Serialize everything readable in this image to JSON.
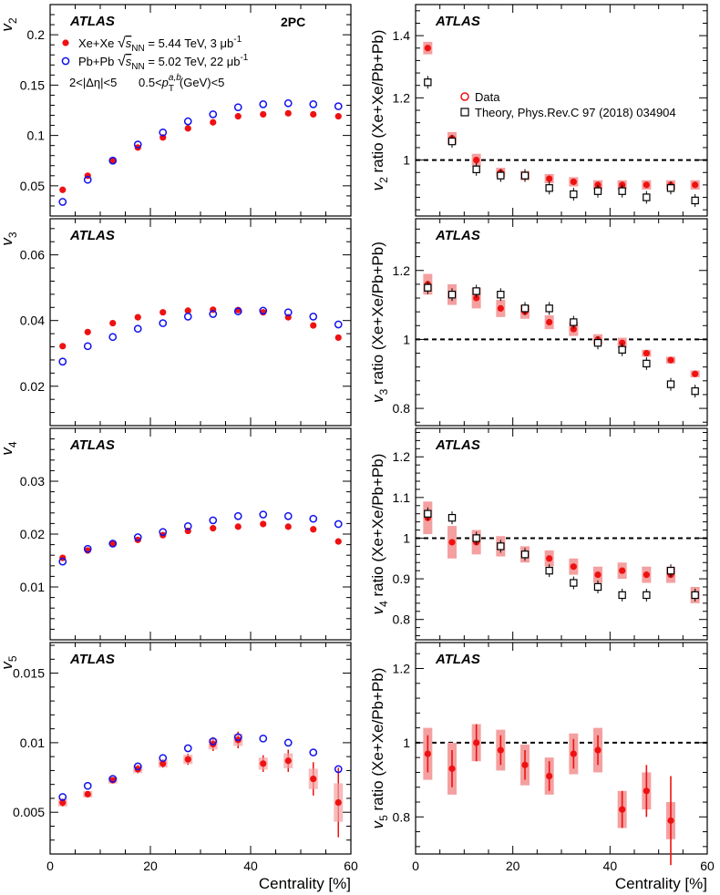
{
  "colors": {
    "xe": "#ee1111",
    "pb": "#1111ee",
    "sys": "#f4a0a0",
    "theory": "#000000"
  },
  "atlas_label": "ATLAS",
  "tag_2pc": "2PC",
  "legend_left": {
    "xe_prefix": "Xe+Xe",
    "xe_energy": "= 5.44 TeV, 3 μb",
    "pb_prefix": "Pb+Pb",
    "pb_energy": "= 5.02 TeV, 22 μb",
    "lumi_exp": "-1",
    "sqrt_s": "s",
    "nn_sub": "NN",
    "cuts_eta": "2<|Δη|<5",
    "cuts_pt_pre": "0.5<",
    "cuts_pt_p": "p",
    "cuts_pt_sub": "T",
    "cuts_pt_sup": "a,b",
    "cuts_pt_post": "(GeV)<5"
  },
  "legend_right": {
    "data": "Data",
    "theory": "Theory, Phys.Rev.C 97 (2018) 034904"
  },
  "xlabel": "Centrality [%]",
  "x_ticks": [
    "0",
    "20",
    "40",
    "60"
  ],
  "chart_data": [
    {
      "id": "v2",
      "type": "scatter",
      "ylabel": "v",
      "ylabel_sub": "2",
      "xlim": [
        0,
        60
      ],
      "ylim": [
        0.02,
        0.23
      ],
      "yticks": [
        0.05,
        0.1,
        0.15,
        0.2
      ],
      "ytick_labels": [
        "0.05",
        "0.1",
        "0.15",
        "0.2"
      ],
      "x": [
        2.5,
        7.5,
        12.5,
        17.5,
        22.5,
        27.5,
        32.5,
        37.5,
        42.5,
        47.5,
        52.5,
        57.5
      ],
      "series": [
        {
          "name": "Xe+Xe",
          "values": [
            0.046,
            0.06,
            0.075,
            0.088,
            0.098,
            0.107,
            0.113,
            0.119,
            0.121,
            0.122,
            0.121,
            0.119
          ]
        },
        {
          "name": "Pb+Pb",
          "values": [
            0.034,
            0.056,
            0.075,
            0.091,
            0.103,
            0.114,
            0.121,
            0.128,
            0.131,
            0.132,
            0.131,
            0.129
          ]
        }
      ]
    },
    {
      "id": "v3",
      "type": "scatter",
      "ylabel": "v",
      "ylabel_sub": "3",
      "xlim": [
        0,
        60
      ],
      "ylim": [
        0.008,
        0.071
      ],
      "yticks": [
        0.02,
        0.04,
        0.06
      ],
      "ytick_labels": [
        "0.02",
        "0.04",
        "0.06"
      ],
      "x": [
        2.5,
        7.5,
        12.5,
        17.5,
        22.5,
        27.5,
        32.5,
        37.5,
        42.5,
        47.5,
        52.5,
        57.5
      ],
      "series": [
        {
          "name": "Xe+Xe",
          "values": [
            0.0322,
            0.0365,
            0.0392,
            0.041,
            0.0425,
            0.043,
            0.0433,
            0.0432,
            0.0425,
            0.041,
            0.0385,
            0.0348
          ]
        },
        {
          "name": "Pb+Pb",
          "values": [
            0.0275,
            0.0322,
            0.035,
            0.0375,
            0.0392,
            0.0412,
            0.042,
            0.0428,
            0.043,
            0.0425,
            0.0412,
            0.0388
          ]
        }
      ]
    },
    {
      "id": "v4",
      "type": "scatter",
      "ylabel": "v",
      "ylabel_sub": "4",
      "xlim": [
        0,
        60
      ],
      "ylim": [
        0.0,
        0.04
      ],
      "yticks": [
        0.01,
        0.02,
        0.03
      ],
      "ytick_labels": [
        "0.01",
        "0.02",
        "0.03"
      ],
      "x": [
        2.5,
        7.5,
        12.5,
        17.5,
        22.5,
        27.5,
        32.5,
        37.5,
        42.5,
        47.5,
        52.5,
        57.5
      ],
      "series": [
        {
          "name": "Xe+Xe",
          "values": [
            0.0155,
            0.0169,
            0.0181,
            0.0189,
            0.0198,
            0.0206,
            0.0211,
            0.0214,
            0.0219,
            0.0214,
            0.0209,
            0.0186
          ]
        },
        {
          "name": "Pb+Pb",
          "values": [
            0.0148,
            0.0172,
            0.0182,
            0.0194,
            0.0204,
            0.0215,
            0.0226,
            0.0234,
            0.0237,
            0.0234,
            0.0229,
            0.0219
          ]
        }
      ]
    },
    {
      "id": "v5",
      "type": "scatter",
      "ylabel": "v",
      "ylabel_sub": "5",
      "xlim": [
        0,
        60
      ],
      "ylim": [
        0.002,
        0.0172
      ],
      "yticks": [
        0.005,
        0.01,
        0.015
      ],
      "ytick_labels": [
        "0.005",
        "0.01",
        "0.015"
      ],
      "x": [
        2.5,
        7.5,
        12.5,
        17.5,
        22.5,
        27.5,
        32.5,
        37.5,
        42.5,
        47.5,
        52.5,
        57.5
      ],
      "series": [
        {
          "name": "Xe+Xe",
          "values": [
            0.0057,
            0.0063,
            0.0073,
            0.0081,
            0.0085,
            0.0088,
            0.0099,
            0.0102,
            0.0085,
            0.0087,
            0.0074,
            0.0057
          ],
          "errors": [
            0.0003,
            0.0002,
            0.0002,
            0.0003,
            0.0003,
            0.0004,
            0.0005,
            0.0006,
            0.0006,
            0.0008,
            0.0012,
            0.0025
          ]
        },
        {
          "name": "Pb+Pb",
          "values": [
            0.0061,
            0.0069,
            0.0074,
            0.0083,
            0.0089,
            0.0096,
            0.0101,
            0.0104,
            0.0103,
            0.01,
            0.0093,
            0.0081
          ]
        }
      ]
    },
    {
      "id": "v2ratio",
      "type": "scatter",
      "ylabel_pre": "v",
      "ylabel_sub": "2",
      "ylabel_post": " ratio (Xe+Xe/Pb+Pb)",
      "xlim": [
        0,
        60
      ],
      "ylim": [
        0.82,
        1.5
      ],
      "refline": 1.0,
      "yticks": [
        1.0,
        1.2,
        1.4
      ],
      "ytick_labels": [
        "1",
        "1.2",
        "1.4"
      ],
      "x": [
        2.5,
        7.5,
        12.5,
        17.5,
        22.5,
        27.5,
        32.5,
        37.5,
        42.5,
        47.5,
        52.5,
        57.5
      ],
      "series": [
        {
          "name": "Data",
          "values": [
            1.36,
            1.07,
            1.0,
            0.96,
            0.95,
            0.94,
            0.93,
            0.92,
            0.92,
            0.92,
            0.92,
            0.92
          ],
          "sys": [
            0.02,
            0.02,
            0.02,
            0.015,
            0.015,
            0.015,
            0.015,
            0.015,
            0.015,
            0.015,
            0.015,
            0.015
          ]
        },
        {
          "name": "Theory",
          "values": [
            1.25,
            1.06,
            0.97,
            0.95,
            0.95,
            0.91,
            0.89,
            0.9,
            0.9,
            0.88,
            0.91,
            0.87
          ]
        }
      ]
    },
    {
      "id": "v3ratio",
      "type": "scatter",
      "ylabel_pre": "v",
      "ylabel_sub": "3",
      "ylabel_post": " ratio (Xe+Xe/Pb+Pb)",
      "xlim": [
        0,
        60
      ],
      "ylim": [
        0.75,
        1.35
      ],
      "refline": 1.0,
      "yticks": [
        0.8,
        1.0,
        1.2
      ],
      "ytick_labels": [
        "0.8",
        "1",
        "1.2"
      ],
      "x": [
        2.5,
        7.5,
        12.5,
        17.5,
        22.5,
        27.5,
        32.5,
        37.5,
        42.5,
        47.5,
        52.5,
        57.5
      ],
      "series": [
        {
          "name": "Data",
          "values": [
            1.16,
            1.13,
            1.12,
            1.09,
            1.08,
            1.05,
            1.03,
            1.0,
            0.99,
            0.96,
            0.94,
            0.9
          ],
          "sys": [
            0.03,
            0.03,
            0.03,
            0.025,
            0.02,
            0.02,
            0.02,
            0.015,
            0.015,
            0.01,
            0.01,
            0.01
          ]
        },
        {
          "name": "Theory",
          "values": [
            1.15,
            1.13,
            1.14,
            1.13,
            1.09,
            1.09,
            1.05,
            0.99,
            0.97,
            0.93,
            0.87,
            0.85
          ]
        }
      ]
    },
    {
      "id": "v4ratio",
      "type": "scatter",
      "ylabel_pre": "v",
      "ylabel_sub": "4",
      "ylabel_post": " ratio (Xe+Xe/Pb+Pb)",
      "xlim": [
        0,
        60
      ],
      "ylim": [
        0.75,
        1.27
      ],
      "refline": 1.0,
      "yticks": [
        0.8,
        0.9,
        1.0,
        1.1,
        1.2
      ],
      "ytick_labels": [
        "0.8",
        "0.9",
        "1",
        "1.1",
        "1.2"
      ],
      "x": [
        2.5,
        7.5,
        12.5,
        17.5,
        22.5,
        27.5,
        32.5,
        37.5,
        42.5,
        47.5,
        52.5,
        57.5
      ],
      "series": [
        {
          "name": "Data",
          "values": [
            1.05,
            0.99,
            0.99,
            0.98,
            0.96,
            0.95,
            0.93,
            0.91,
            0.92,
            0.91,
            0.91,
            0.86
          ],
          "sys": [
            0.04,
            0.04,
            0.03,
            0.025,
            0.02,
            0.02,
            0.02,
            0.02,
            0.02,
            0.02,
            0.02,
            0.02
          ]
        },
        {
          "name": "Theory",
          "values": [
            1.06,
            1.05,
            1.0,
            0.98,
            0.96,
            0.92,
            0.89,
            0.88,
            0.86,
            0.86,
            0.92,
            0.86
          ]
        }
      ]
    },
    {
      "id": "v5ratio",
      "type": "scatter",
      "ylabel_pre": "v",
      "ylabel_sub": "5",
      "ylabel_post": " ratio (Xe+Xe/Pb+Pb)",
      "xlim": [
        0,
        60
      ],
      "ylim": [
        0.7,
        1.27
      ],
      "refline": 1.0,
      "yticks": [
        0.8,
        1.0,
        1.2
      ],
      "ytick_labels": [
        "0.8",
        "1",
        "1.2"
      ],
      "x": [
        2.5,
        7.5,
        12.5,
        17.5,
        22.5,
        27.5,
        32.5,
        37.5,
        42.5,
        47.5,
        52.5
      ],
      "series": [
        {
          "name": "Data",
          "values": [
            0.97,
            0.93,
            1.0,
            0.98,
            0.94,
            0.91,
            0.97,
            0.98,
            0.82,
            0.87,
            0.79
          ],
          "errors": [
            0.05,
            0.05,
            0.05,
            0.04,
            0.04,
            0.04,
            0.04,
            0.04,
            0.05,
            0.07,
            0.12
          ],
          "sys": [
            0.07,
            0.07,
            0.05,
            0.055,
            0.055,
            0.05,
            0.055,
            0.06,
            0.05,
            0.05,
            0.05
          ]
        }
      ]
    }
  ]
}
